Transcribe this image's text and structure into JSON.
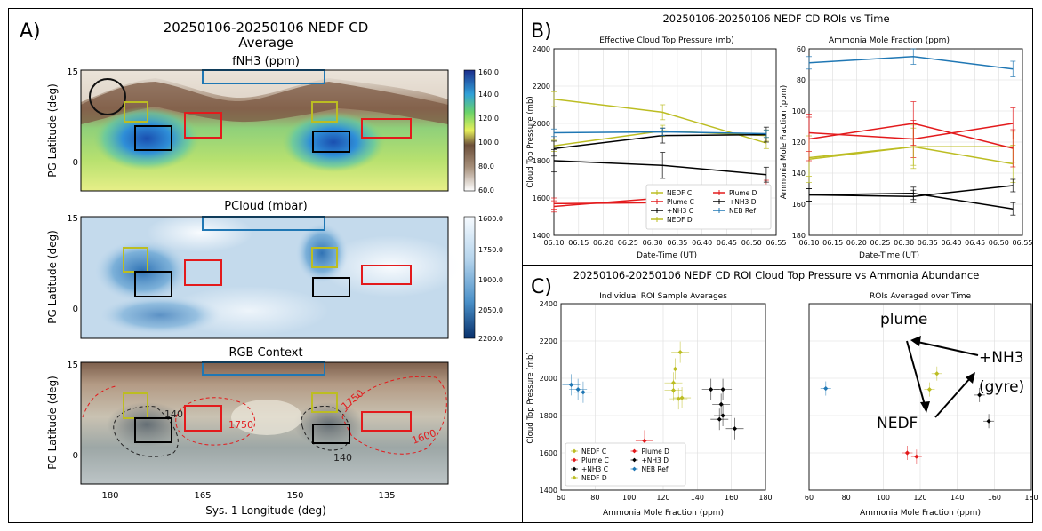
{
  "panel_labels": {
    "a": "A)",
    "b": "B)",
    "c": "C)"
  },
  "panel_a": {
    "title_line1": "20250106-20250106 NEDF CD",
    "title_line2": "Average",
    "ylabel": "PG Latitude (deg)",
    "xlabel": "Sys. 1 Longitude (deg)",
    "lat_ticks": [
      "15",
      "0"
    ],
    "lon_ticks": [
      "180",
      "165",
      "150",
      "135"
    ],
    "maps": [
      {
        "title": "fNH3 (ppm)",
        "colorbar": [
          "160.0",
          "140.0",
          "120.0",
          "100.0",
          "80.0",
          "60.0"
        ]
      },
      {
        "title": "PCloud (mbar)",
        "colorbar": [
          "1600.0",
          "1750.0",
          "1900.0",
          "2050.0",
          "2200.0"
        ]
      },
      {
        "title": "RGB Context",
        "colorbar": []
      }
    ],
    "contour_labels": [
      "140",
      "1750",
      "140",
      "1750",
      "1600",
      "140"
    ]
  },
  "panel_b": {
    "title": "20250106-20250106 NEDF CD ROIs vs Time",
    "xlabel": "Date-Time (UT)",
    "xticks": [
      "06:10",
      "06:15",
      "06:20",
      "06:25",
      "06:30",
      "06:35",
      "06:40",
      "06:45",
      "06:50",
      "06:55"
    ],
    "legend": [
      "NEDF C",
      "Plume C",
      "+NH3 C",
      "NEDF D",
      "Plume D",
      "+NH3 D",
      "NEB Ref"
    ]
  },
  "panel_c": {
    "title": "20250106-20250106 NEDF CD ROI Cloud Top Pressure vs Ammonia Abundance",
    "xlabel": "Ammonia Mole Fraction (ppm)",
    "ylabel": "Cloud Top Pressure (mb)",
    "legend": [
      "NEDF C",
      "Plume C",
      "+NH3 C",
      "NEDF D",
      "Plume D",
      "+NH3 D",
      "NEB Ref"
    ],
    "annotations": {
      "plume": "plume",
      "gyre_line1": "+NH3",
      "gyre_line2": "(gyre)",
      "nedf": "NEDF"
    }
  },
  "chart_data": [
    {
      "type": "line",
      "title": "Effective Cloud Top Pressure (mb)",
      "xlabel": "Date-Time (UT)",
      "ylabel": "Cloud Top Pressure (mb)",
      "ylim": [
        2400,
        1400
      ],
      "yticks": [
        1400,
        1600,
        1800,
        2000,
        2200,
        2400
      ],
      "x": [
        "06:10",
        "06:32",
        "06:53"
      ],
      "grid": true,
      "legend_position": "bottom-right",
      "series": [
        {
          "name": "NEDF C",
          "color": "#bcbd22",
          "values": [
            1880,
            1960,
            1935
          ],
          "errors": [
            30,
            30,
            30
          ]
        },
        {
          "name": "Plume C",
          "color": "#e31a1c",
          "values": [
            1555,
            1600,
            1665
          ],
          "errors": [
            30,
            30,
            30
          ]
        },
        {
          "name": "+NH3 C",
          "color": "#000000",
          "values": [
            1800,
            1775,
            1725
          ],
          "errors": [
            60,
            70,
            40
          ]
        },
        {
          "name": "NEDF D",
          "color": "#bcbd22",
          "values": [
            2130,
            2060,
            1895
          ],
          "errors": [
            40,
            40,
            30
          ]
        },
        {
          "name": "Plume D",
          "color": "#e31a1c",
          "values": [
            1570,
            1575,
            1590
          ],
          "errors": [
            30,
            30,
            30
          ]
        },
        {
          "name": "+NH3 D",
          "color": "#000000",
          "values": [
            1865,
            1935,
            1940
          ],
          "errors": [
            40,
            40,
            40
          ]
        },
        {
          "name": "NEB Ref",
          "color": "#1f77b4",
          "values": [
            1950,
            1955,
            1945
          ],
          "errors": [
            20,
            20,
            20
          ]
        }
      ]
    },
    {
      "type": "line",
      "title": "Ammonia Mole Fraction (ppm)",
      "xlabel": "Date-Time (UT)",
      "ylabel": "Ammonia Mole Fraction (ppm)",
      "ylim": [
        60,
        180
      ],
      "yticks": [
        60,
        80,
        100,
        120,
        140,
        160,
        180
      ],
      "x": [
        "06:10",
        "06:32",
        "06:53"
      ],
      "grid": true,
      "series": [
        {
          "name": "NEDF C",
          "color": "#bcbd22",
          "values": [
            131,
            123,
            134
          ],
          "errors": [
            15,
            14,
            12
          ]
        },
        {
          "name": "Plume C",
          "color": "#e31a1c",
          "values": [
            114,
            118,
            108
          ],
          "errors": [
            12,
            12,
            10
          ]
        },
        {
          "name": "+NH3 C",
          "color": "#000000",
          "values": [
            154,
            153,
            163
          ],
          "errors": [
            4,
            4,
            4
          ]
        },
        {
          "name": "NEDF D",
          "color": "#bcbd22",
          "values": [
            130,
            123,
            123
          ],
          "errors": [
            12,
            12,
            10
          ]
        },
        {
          "name": "Plume D",
          "color": "#e31a1c",
          "values": [
            118,
            108,
            124
          ],
          "errors": [
            14,
            14,
            12
          ]
        },
        {
          "name": "+NH3 D",
          "color": "#000000",
          "values": [
            154,
            155,
            148
          ],
          "errors": [
            4,
            4,
            4
          ]
        },
        {
          "name": "NEB Ref",
          "color": "#1f77b4",
          "values": [
            69,
            65,
            73
          ],
          "errors": [
            4,
            5,
            5
          ]
        }
      ]
    },
    {
      "type": "scatter",
      "title": "Individual ROI Sample Averages",
      "xlabel": "Ammonia Mole Fraction (ppm)",
      "ylabel": "Cloud Top Pressure (mb)",
      "xlim": [
        60,
        180
      ],
      "ylim": [
        2400,
        1400
      ],
      "xticks": [
        60,
        80,
        100,
        120,
        140,
        160,
        180
      ],
      "yticks": [
        1400,
        1600,
        1800,
        2000,
        2200,
        2400
      ],
      "grid": true,
      "legend_position": "bottom-left",
      "series": [
        {
          "name": "NEDF C",
          "color": "#bcbd22",
          "points": [
            [
              129,
              1890
            ],
            [
              131,
              1895
            ],
            [
              127,
              2050
            ]
          ]
        },
        {
          "name": "Plume C",
          "color": "#e31a1c",
          "points": [
            [
              109,
              1575
            ],
            [
              118,
              1560
            ],
            [
              121,
              1580
            ]
          ]
        },
        {
          "name": "+NH3 C",
          "color": "#000000",
          "points": [
            [
              153,
              1780
            ],
            [
              154,
              1860
            ],
            [
              162,
              1730
            ]
          ]
        },
        {
          "name": "NEDF D",
          "color": "#bcbd22",
          "points": [
            [
              126,
              1975
            ],
            [
              126,
              1935
            ],
            [
              130,
              2140
            ]
          ]
        },
        {
          "name": "Plume D",
          "color": "#e31a1c",
          "points": [
            [
              109,
              1665
            ],
            [
              116,
              1560
            ],
            [
              124,
              1590
            ]
          ]
        },
        {
          "name": "+NH3 D",
          "color": "#000000",
          "points": [
            [
              148,
              1940
            ],
            [
              155,
              1800
            ],
            [
              155,
              1940
            ]
          ]
        },
        {
          "name": "NEB Ref",
          "color": "#1f77b4",
          "points": [
            [
              66,
              1965
            ],
            [
              70,
              1940
            ],
            [
              73,
              1925
            ]
          ]
        }
      ]
    },
    {
      "type": "scatter",
      "title": "ROIs Averaged over Time",
      "xlabel": "Ammonia Mole Fraction (ppm)",
      "xlim": [
        60,
        180
      ],
      "ylim": [
        2400,
        1400
      ],
      "xticks": [
        60,
        80,
        100,
        120,
        140,
        160,
        180
      ],
      "grid": true,
      "series": [
        {
          "name": "NEDF C",
          "color": "#bcbd22",
          "points": [
            [
              129,
              2025
            ]
          ]
        },
        {
          "name": "Plume C",
          "color": "#e31a1c",
          "points": [
            [
              118,
              1580
            ]
          ]
        },
        {
          "name": "+NH3 C",
          "color": "#000000",
          "points": [
            [
              157,
              1770
            ]
          ]
        },
        {
          "name": "NEDF D",
          "color": "#bcbd22",
          "points": [
            [
              125,
              1940
            ]
          ]
        },
        {
          "name": "Plume D",
          "color": "#e31a1c",
          "points": [
            [
              113,
              1600
            ]
          ]
        },
        {
          "name": "+NH3 D",
          "color": "#000000",
          "points": [
            [
              152,
              1910
            ]
          ]
        },
        {
          "name": "NEB Ref",
          "color": "#1f77b4",
          "points": [
            [
              69,
              1945
            ]
          ]
        }
      ]
    }
  ]
}
